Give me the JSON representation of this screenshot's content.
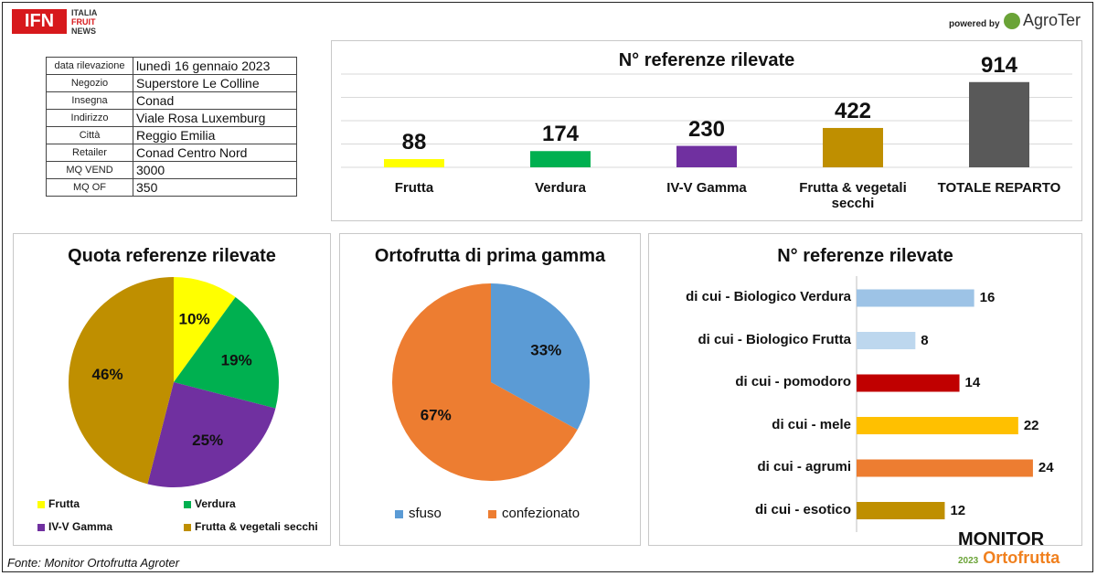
{
  "header": {
    "ifn_logo": "IFN",
    "ifn_lines": [
      "ITALIA",
      "FRUIT",
      "NEWS"
    ],
    "powered_by": "powered by",
    "agroter": "AgroTer"
  },
  "info_table": [
    {
      "k": "data rilevazione",
      "v": "lunedì 16 gennaio 2023"
    },
    {
      "k": "Negozio",
      "v": "Superstore Le Colline"
    },
    {
      "k": "Insegna",
      "v": "Conad"
    },
    {
      "k": "Indirizzo",
      "v": "Viale Rosa Luxemburg"
    },
    {
      "k": "Città",
      "v": "Reggio Emilia"
    },
    {
      "k": "Retailer",
      "v": "Conad Centro Nord"
    },
    {
      "k": "MQ VEND",
      "v": "3000"
    },
    {
      "k": "MQ OF",
      "v": "350"
    }
  ],
  "chart_data": [
    {
      "type": "bar",
      "title": "N° referenze rilevate",
      "categories": [
        "Frutta",
        "Verdura",
        "IV-V Gamma",
        "Frutta & vegetali secchi",
        "TOTALE REPARTO"
      ],
      "values": [
        88,
        174,
        230,
        422,
        914
      ],
      "colors": [
        "#ffff00",
        "#00b050",
        "#7030a0",
        "#bf8f00",
        "#595959"
      ],
      "ylim": [
        0,
        1000
      ]
    },
    {
      "type": "pie",
      "title": "Quota referenze rilevate",
      "labels": [
        "Frutta",
        "Verdura",
        "IV-V Gamma",
        "Frutta & vegetali secchi"
      ],
      "values": [
        10,
        19,
        25,
        46
      ],
      "display": [
        "10%",
        "19%",
        "25%",
        "46%"
      ],
      "colors": [
        "#ffff00",
        "#00b050",
        "#7030a0",
        "#bf8f00"
      ]
    },
    {
      "type": "pie",
      "title": "Ortofrutta di prima gamma",
      "labels": [
        "sfuso",
        "confezionato"
      ],
      "values": [
        33,
        67
      ],
      "display": [
        "33%",
        "67%"
      ],
      "colors": [
        "#5b9bd5",
        "#ed7d31"
      ]
    },
    {
      "type": "bar",
      "orientation": "horizontal",
      "title": "N° referenze rilevate",
      "categories": [
        "di cui -  Biologico Verdura",
        "di cui -  Biologico Frutta",
        "di cui - pomodoro",
        "di cui - mele",
        "di cui - agrumi",
        "di cui - esotico"
      ],
      "values": [
        16,
        8,
        14,
        22,
        24,
        12
      ],
      "colors": [
        "#9dc3e6",
        "#bdd7ee",
        "#c00000",
        "#ffc000",
        "#ed7d31",
        "#bf8f00"
      ],
      "xlim": [
        0,
        26
      ]
    }
  ],
  "footer": {
    "source": "Fonte: Monitor Ortofrutta Agroter",
    "monitor": "MONITOR",
    "monitor_year": "2023",
    "monitor_sub": "Ortofrutta"
  }
}
